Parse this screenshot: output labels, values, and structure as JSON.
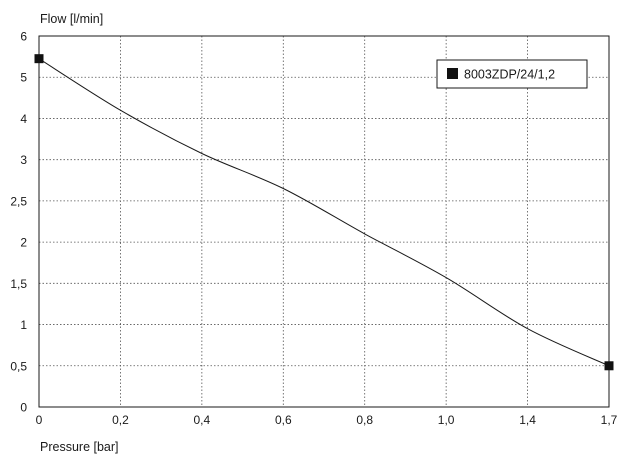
{
  "chart_data": {
    "type": "line",
    "ylabel": "Flow [l/min]",
    "xlabel": "Pressure [bar]",
    "x_ticks": [
      "0",
      "0,2",
      "0,4",
      "0,6",
      "0,8",
      "1,0",
      "1,4",
      "1,7"
    ],
    "y_ticks": [
      "0",
      "0,5",
      "1",
      "1,5",
      "2",
      "2,5",
      "3",
      "4",
      "5",
      "6"
    ],
    "grid": true,
    "legend_position": "top-right",
    "series": [
      {
        "name": "8003ZDP/24/1,2",
        "color": "#111111",
        "marker": "square",
        "points": [
          {
            "x": "0",
            "y": 5.45
          },
          {
            "x": "0,2",
            "y": 4.2
          },
          {
            "x": "0,4",
            "y": 3.15
          },
          {
            "x": "0,6",
            "y": 2.65
          },
          {
            "x": "0,8",
            "y": 2.1
          },
          {
            "x": "1,0",
            "y": 1.57
          },
          {
            "x": "1,4",
            "y": 0.95
          },
          {
            "x": "1,7",
            "y": 0.5
          }
        ],
        "marker_points": [
          {
            "x": "0",
            "y": 5.45
          },
          {
            "x": "1,7",
            "y": 0.5
          }
        ]
      }
    ]
  }
}
